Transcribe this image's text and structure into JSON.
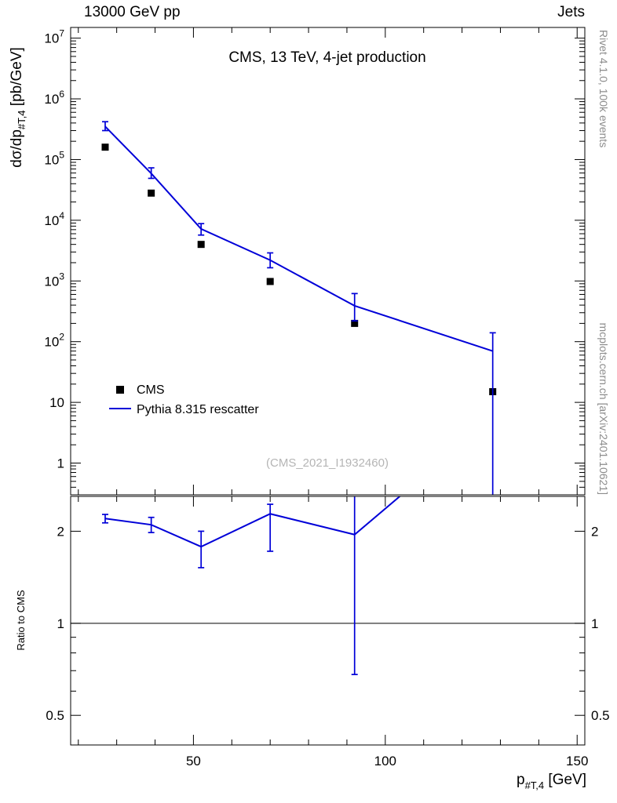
{
  "header": {
    "left": "13000 GeV pp",
    "right": "Jets"
  },
  "credits": {
    "top_right": "Rivet 4.1.0, 100k events",
    "bottom_right": "mcplots.cern.ch [arXiv:2401.10621]"
  },
  "legend": {
    "items": [
      {
        "label": "CMS",
        "marker": "black-square"
      },
      {
        "label": "Pythia 8.315 rescatter",
        "marker": "blue-line"
      }
    ]
  },
  "colors": {
    "pythia_blue": "#0000d8",
    "cms_black": "#000000",
    "credits_gray": "#8c8c8c",
    "watermark_gray": "#b5b5b5"
  },
  "chart_data": {
    "type": "line",
    "title": "CMS, 13 TeV, 4-jet production",
    "watermark": "(CMS_2021_I1932460)",
    "xlabel": {
      "base": "p",
      "sub": "#T,4",
      "unit": " [GeV]"
    },
    "ylabel": {
      "base": "dσ/dp",
      "sub": "#T,4",
      "unit": " [pb/GeV]"
    },
    "ratio_ylabel": "Ratio to CMS",
    "x_range": [
      18,
      152
    ],
    "x_ticks_major": [
      50,
      100,
      150
    ],
    "x_tick_minor_step": 10,
    "y_scale": "log",
    "y_range": [
      0.3,
      15000000
    ],
    "ratio_scale": "log",
    "ratio_range": [
      0.4,
      2.6
    ],
    "ratio_ticks": [
      0.5,
      1,
      2
    ],
    "ratio_minor_ticks": [
      0.6,
      0.7,
      0.8,
      0.9
    ],
    "series": [
      {
        "name": "CMS",
        "type": "scatter",
        "marker": "square",
        "color": "#000000",
        "x": [
          27,
          39,
          52,
          70,
          92,
          128
        ],
        "y": [
          160000,
          28000,
          4000,
          980,
          200,
          15
        ]
      },
      {
        "name": "Pythia 8.315 rescatter",
        "type": "line",
        "color": "#0000d8",
        "x": [
          27,
          39,
          52,
          70,
          92,
          128
        ],
        "y": [
          350000,
          59000,
          7200,
          2200,
          390,
          70
        ],
        "y_err_lo": [
          300000,
          49000,
          5700,
          1650,
          220,
          0.1
        ],
        "y_err_hi": [
          420000,
          73000,
          8800,
          2900,
          620,
          140
        ]
      }
    ],
    "ratio": {
      "name": "Pythia 8.315 rescatter / CMS",
      "baseline": 1,
      "x": [
        27,
        39,
        52,
        70,
        92,
        128
      ],
      "y": [
        2.2,
        2.1,
        1.78,
        2.28,
        1.95,
        4.7
      ],
      "y_err_lo": [
        2.13,
        1.98,
        1.52,
        1.72,
        0.68,
        3.5
      ],
      "y_err_hi": [
        2.27,
        2.22,
        2.0,
        2.45,
        6.0,
        6.0
      ]
    }
  }
}
